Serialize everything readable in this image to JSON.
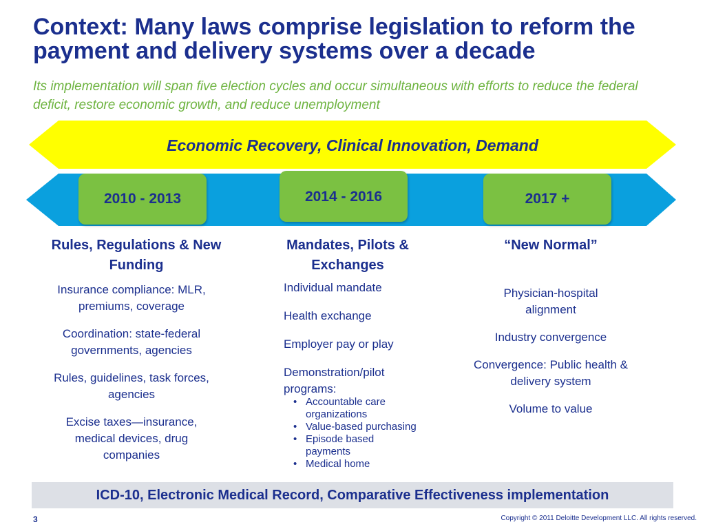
{
  "slide": {
    "title": "Context: Many laws comprise legislation to reform the payment and delivery systems over a decade",
    "subtitle": "Its implementation will span five election cycles and occur simultaneous with efforts to reduce the federal deficit, restore economic growth, and reduce unemployment",
    "top_band_label": "Economic Recovery, Clinical Innovation, Demand",
    "periods": [
      {
        "label": "2010 - 2013"
      },
      {
        "label": "2014 - 2016"
      },
      {
        "label": "2017 +"
      }
    ],
    "columns": [
      {
        "heading": "Rules, Regulations & New Funding",
        "items": [
          "Insurance compliance: MLR, premiums, coverage",
          "Coordination: state-federal governments, agencies",
          "Rules, guidelines, task forces, agencies",
          "Excise taxes—insurance, medical devices, drug companies"
        ]
      },
      {
        "heading": "Mandates, Pilots & Exchanges",
        "items": [
          "Individual mandate",
          "Health exchange",
          "Employer pay or play",
          "Demonstration/pilot programs:"
        ],
        "sub_items": [
          "Accountable care organizations",
          "Value-based purchasing",
          "Episode based payments",
          "Medical home"
        ]
      },
      {
        "heading": "“New Normal”",
        "items": [
          "Physician-hospital alignment",
          "Industry convergence",
          "Convergence: Public health & delivery system",
          "Volume to value"
        ]
      }
    ],
    "bottom_bar": "ICD-10, Electronic Medical Record, Comparative Effectiveness implementation",
    "page_number": "3",
    "copyright": "Copyright © 2011 Deloitte Development LLC. All rights reserved."
  },
  "colors": {
    "title": "#1b2f8e",
    "subtitle": "#6db33f",
    "top_band": "#ffff00",
    "timeline_band": "#0aa0de",
    "period_box": "#7bc142",
    "bottom_bar": "#dde0e6"
  }
}
